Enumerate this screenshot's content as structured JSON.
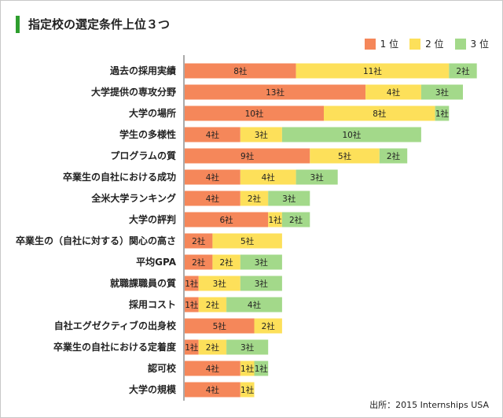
{
  "title": "指定校の選定条件上位３つ",
  "legend": [
    {
      "label": "1 位",
      "color": "#f5875a"
    },
    {
      "label": "2 位",
      "color": "#fde05a"
    },
    {
      "label": "3 位",
      "color": "#a3d98a"
    }
  ],
  "source": "出所：2015 Internships USA",
  "chart_data": {
    "type": "bar",
    "orientation": "horizontal",
    "stacked": true,
    "unit_suffix": "社",
    "categories": [
      "過去の採用実績",
      "大学提供の専攻分野",
      "大学の場所",
      "学生の多様性",
      "プログラムの質",
      "卒業生の自社における成功",
      "全米大学ランキング",
      "大学の評判",
      "卒業生の（自社に対する）関心の高さ",
      "平均GPA",
      "就職課職員の質",
      "採用コスト",
      "自社エグゼクティブの出身校",
      "卒業生の自社における定着度",
      "認可校",
      "大学の規模"
    ],
    "series": [
      {
        "name": "1 位",
        "color": "#f5875a",
        "values": [
          8,
          13,
          10,
          4,
          9,
          4,
          4,
          6,
          2,
          2,
          1,
          1,
          5,
          1,
          4,
          4
        ]
      },
      {
        "name": "2 位",
        "color": "#fde05a",
        "values": [
          11,
          4,
          8,
          3,
          5,
          4,
          2,
          1,
          5,
          2,
          3,
          2,
          2,
          2,
          1,
          1
        ]
      },
      {
        "name": "3 位",
        "color": "#a3d98a",
        "values": [
          2,
          3,
          1,
          10,
          2,
          3,
          3,
          2,
          0,
          3,
          3,
          4,
          0,
          3,
          1,
          0
        ]
      }
    ],
    "grid": false
  }
}
